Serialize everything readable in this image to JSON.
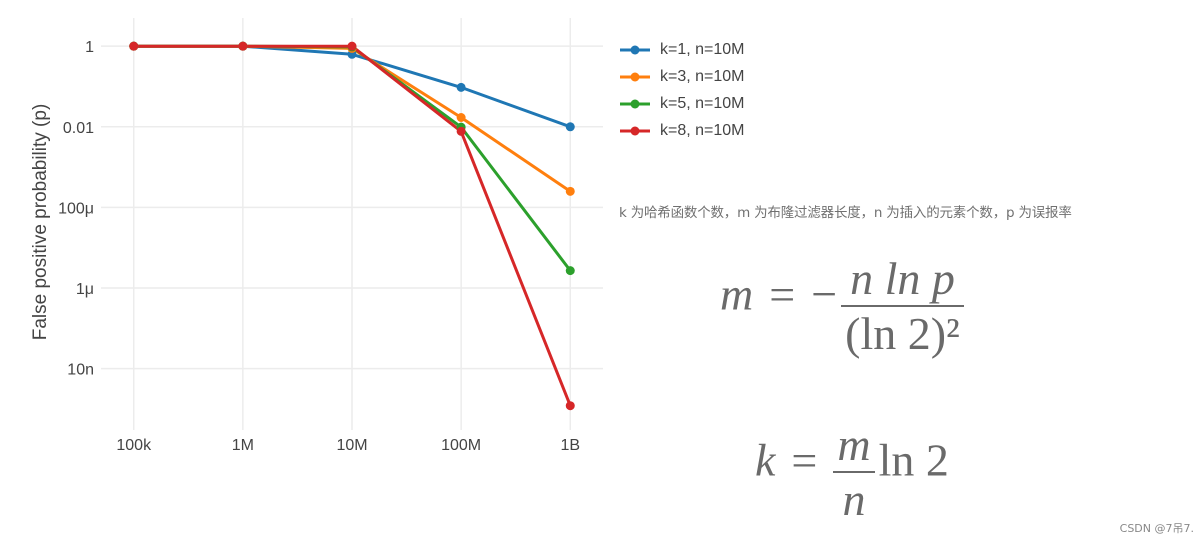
{
  "chart_data": {
    "type": "line",
    "x_scale": "log",
    "y_scale": "log",
    "ylabel": "False positive probability (p)",
    "x_tick_labels": [
      "100k",
      "1M",
      "10M",
      "100M",
      "1B"
    ],
    "x": [
      100000,
      1000000,
      10000000,
      100000000,
      1000000000
    ],
    "y_ticks": [
      1,
      0.01,
      0.0001,
      1e-06,
      1e-08
    ],
    "y_tick_labels": [
      "1",
      "0.01",
      "100μ",
      "1μ",
      "10n"
    ],
    "ylim": [
      3e-10,
      5
    ],
    "grid": true,
    "legend_position": "right",
    "series": [
      {
        "name": "k=1, n=10M",
        "color": "#1f77b4",
        "values": [
          1,
          1,
          0.63,
          0.095,
          0.01
        ]
      },
      {
        "name": "k=3, n=10M",
        "color": "#ff7f0e",
        "values": [
          1,
          1,
          0.88,
          0.017,
          0.00025
        ]
      },
      {
        "name": "k=5, n=10M",
        "color": "#2ca02c",
        "values": [
          1,
          1,
          0.96,
          0.0098,
          2.7e-06
        ]
      },
      {
        "name": "k=8, n=10M",
        "color": "#d62728",
        "values": [
          1,
          1,
          1,
          0.0077,
          1.2e-09
        ]
      }
    ]
  },
  "note": "k 为哈希函数个数，m 为布隆过滤器长度，n 为插入的元素个数，p 为误报率",
  "formula1": {
    "lhs": "m",
    "eq": "=",
    "minus": "−",
    "num": "n ln p",
    "den": "(ln 2)²"
  },
  "formula2": {
    "lhs": "k",
    "eq": "=",
    "num": "m",
    "den": "n",
    "tail": "ln 2"
  },
  "watermark": "CSDN @7吊7."
}
